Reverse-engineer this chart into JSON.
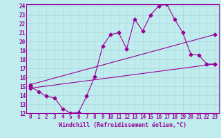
{
  "xlabel": "Windchill (Refroidissement éolien,°C)",
  "xlim": [
    -0.5,
    23.5
  ],
  "ylim": [
    12,
    24.2
  ],
  "yticks": [
    12,
    13,
    14,
    15,
    16,
    17,
    18,
    19,
    20,
    21,
    22,
    23,
    24
  ],
  "xticks": [
    0,
    1,
    2,
    3,
    4,
    5,
    6,
    7,
    8,
    9,
    10,
    11,
    12,
    13,
    14,
    15,
    16,
    17,
    18,
    19,
    20,
    21,
    22,
    23
  ],
  "bg_color": "#c0ecee",
  "line_color": "#990099",
  "line1_x": [
    0,
    1,
    2,
    3,
    4,
    5,
    6,
    7,
    8,
    9,
    10,
    11,
    12,
    13,
    14,
    15,
    16,
    17,
    18,
    19,
    20,
    21,
    22,
    23
  ],
  "line1_y": [
    15.0,
    14.4,
    13.9,
    13.7,
    12.5,
    12.0,
    12.1,
    13.9,
    16.1,
    19.5,
    20.8,
    21.0,
    19.2,
    22.5,
    21.2,
    23.0,
    24.0,
    24.2,
    22.5,
    21.0,
    18.6,
    18.5,
    17.5,
    17.5
  ],
  "line2_x": [
    0,
    23
  ],
  "line2_y": [
    14.8,
    17.5
  ],
  "line3_x": [
    0,
    23
  ],
  "line3_y": [
    15.2,
    20.8
  ],
  "marker": "D",
  "markersize": 2.5,
  "linewidth": 0.8,
  "grid_color": "#a8d8da",
  "spine_color": "#990099",
  "tick_fontsize": 5.5,
  "xlabel_fontsize": 6.0
}
